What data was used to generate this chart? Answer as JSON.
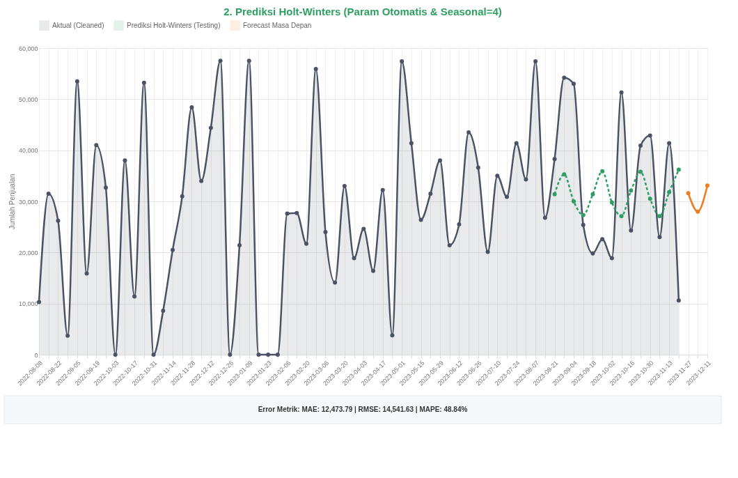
{
  "chart_data": {
    "type": "line",
    "title": "2. Prediksi Holt-Winters (Param Otomatis & Seasonal=4)",
    "ylabel": "Jumlah Penjualan",
    "categories": [
      "2022-08-08",
      null,
      "2022-08-22",
      null,
      "2022-09-05",
      null,
      "2022-09-19",
      null,
      "2022-10-03",
      null,
      "2022-10-17",
      null,
      "2022-10-31",
      null,
      "2022-11-14",
      null,
      "2022-11-28",
      null,
      "2022-12-12",
      null,
      "2022-12-26",
      null,
      "2023-01-09",
      null,
      "2023-01-23",
      null,
      "2023-02-06",
      null,
      "2023-02-20",
      null,
      "2023-03-06",
      null,
      "2023-03-20",
      null,
      "2023-04-03",
      null,
      "2023-04-17",
      null,
      "2023-05-01",
      null,
      "2023-05-15",
      null,
      "2023-05-29",
      null,
      "2023-06-12",
      null,
      "2023-06-26",
      null,
      "2023-07-10",
      null,
      "2023-07-24",
      null,
      "2023-08-07",
      null,
      "2023-08-21",
      null,
      "2023-09-04",
      null,
      "2023-09-18",
      null,
      "2023-10-02",
      null,
      "2023-10-16",
      null,
      "2023-10-30",
      null,
      "2023-11-13",
      null,
      "2023-11-27",
      null,
      "2023-12-11"
    ],
    "series": [
      {
        "name": "Aktual (Cleaned)",
        "type": "area",
        "color": "#4b5263",
        "values": [
          10300,
          31500,
          26200,
          3700,
          53500,
          15900,
          41000,
          32700,
          0,
          38000,
          11400,
          53200,
          0,
          8600,
          20500,
          31000,
          48400,
          34000,
          44400,
          57500,
          0,
          21400,
          57500,
          0,
          0,
          0,
          27600,
          27700,
          21700,
          55900,
          24000,
          14100,
          33000,
          18900,
          24600,
          16400,
          32200,
          3800,
          57400,
          41400,
          26400,
          31500,
          38000,
          21400,
          25500,
          43500,
          36600,
          20100,
          35000,
          30900,
          41400,
          34300,
          57400,
          26800,
          38300,
          54200,
          53000,
          25400,
          19800,
          22600,
          18900,
          51300,
          24300,
          40900,
          42900,
          23000,
          41400,
          10600,
          null,
          null,
          null
        ]
      },
      {
        "name": "Prediksi Holt-Winters (Testing)",
        "line_style": "dashed",
        "color": "#2e9e62",
        "values": [
          null,
          null,
          null,
          null,
          null,
          null,
          null,
          null,
          null,
          null,
          null,
          null,
          null,
          null,
          null,
          null,
          null,
          null,
          null,
          null,
          null,
          null,
          null,
          null,
          null,
          null,
          null,
          null,
          null,
          null,
          null,
          null,
          null,
          null,
          null,
          null,
          null,
          null,
          null,
          null,
          null,
          null,
          null,
          null,
          null,
          null,
          null,
          null,
          null,
          null,
          null,
          null,
          null,
          null,
          31400,
          35300,
          30000,
          27300,
          31400,
          35900,
          29800,
          27100,
          32100,
          35800,
          30500,
          27100,
          31800,
          36200,
          null,
          null,
          null
        ]
      },
      {
        "name": "Forecast Masa Depan",
        "color": "#f07c21",
        "values": [
          null,
          null,
          null,
          null,
          null,
          null,
          null,
          null,
          null,
          null,
          null,
          null,
          null,
          null,
          null,
          null,
          null,
          null,
          null,
          null,
          null,
          null,
          null,
          null,
          null,
          null,
          null,
          null,
          null,
          null,
          null,
          null,
          null,
          null,
          null,
          null,
          null,
          null,
          null,
          null,
          null,
          null,
          null,
          null,
          null,
          null,
          null,
          null,
          null,
          null,
          null,
          null,
          null,
          null,
          null,
          null,
          null,
          null,
          null,
          null,
          null,
          null,
          null,
          null,
          null,
          null,
          null,
          null,
          31600,
          28000,
          33100
        ]
      }
    ],
    "ylim": [
      0,
      60000
    ],
    "yticks": [
      0,
      {
        "value": 10000,
        "label": "10,000"
      },
      {
        "value": 20000,
        "label": "20,000"
      },
      {
        "value": 30000,
        "label": "30,000"
      },
      {
        "value": 40000,
        "label": "40,000"
      },
      {
        "value": 50000,
        "label": "50,000"
      },
      {
        "value": 60000,
        "label": "60,000"
      }
    ],
    "grid": true,
    "legend": "top",
    "marker": "circle",
    "line_style": "solid",
    "annotations": [
      "Error Metrik: MAE: 12,473.79 | RMSE: 14,541.63 | MAPE: 48.84%"
    ]
  }
}
